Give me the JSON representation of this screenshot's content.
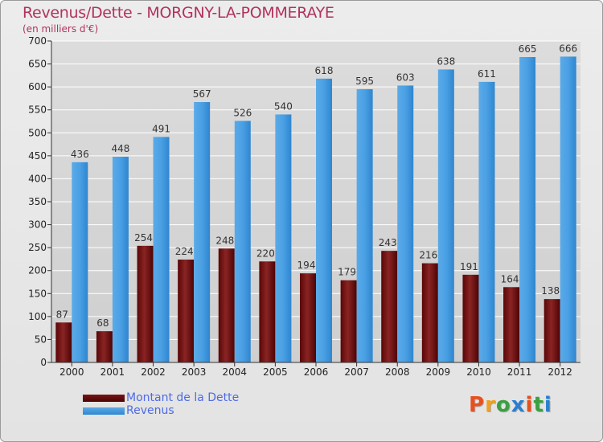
{
  "title": "Revenus/Dette - MORGNY-LA-POMMERAYE",
  "subtitle": "(en milliers d'€)",
  "legend": {
    "dette_label": "Montant de la Dette",
    "revenus_label": "Revenus"
  },
  "logo": {
    "text": "Proxiti"
  },
  "colors": {
    "dette": "#6b0a0a",
    "revenus": "#3d95e0",
    "grid": "#ffffff",
    "label_text": "#b0335e"
  },
  "chart_data": {
    "type": "bar",
    "categories": [
      "2000",
      "2001",
      "2002",
      "2003",
      "2004",
      "2005",
      "2006",
      "2007",
      "2008",
      "2009",
      "2010",
      "2011",
      "2012"
    ],
    "series": [
      {
        "name": "Montant de la Dette",
        "values": [
          87,
          68,
          254,
          224,
          248,
          220,
          194,
          179,
          243,
          216,
          191,
          164,
          138
        ]
      },
      {
        "name": "Revenus",
        "values": [
          436,
          448,
          491,
          567,
          526,
          540,
          618,
          595,
          603,
          638,
          611,
          665,
          666
        ]
      }
    ],
    "ylim": [
      0,
      700
    ],
    "yticks": [
      0,
      50,
      100,
      150,
      200,
      250,
      300,
      350,
      400,
      450,
      500,
      550,
      600,
      650,
      700
    ],
    "title": "Revenus/Dette - MORGNY-LA-POMMERAYE",
    "ylabel": "(en milliers d'€)",
    "grid": true,
    "legend_position": "bottom-left"
  }
}
